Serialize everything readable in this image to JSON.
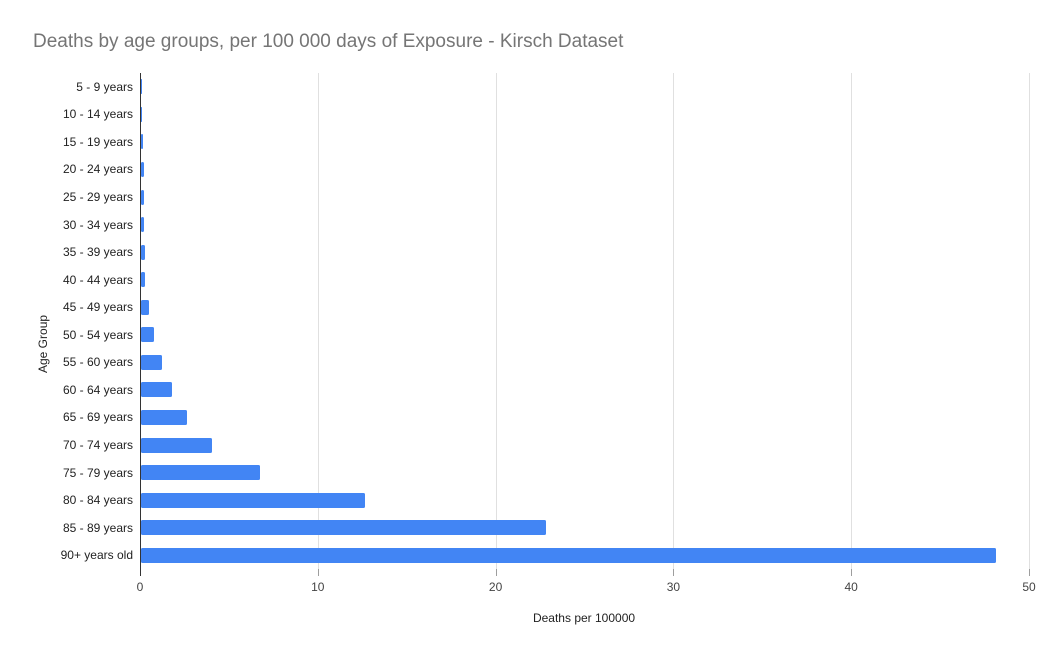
{
  "title": "Deaths by age groups, per 100 000 days of Exposure - Kirsch Dataset",
  "chart_data": {
    "type": "bar",
    "orientation": "horizontal",
    "title": "Deaths by age groups, per 100 000 days of Exposure - Kirsch Dataset",
    "categories": [
      "5 - 9 years",
      "10 - 14 years",
      "15 - 19 years",
      "20 - 24 years",
      "25 - 29 years",
      "30 - 34 years",
      "35 - 39 years",
      "40 - 44 years",
      "45 - 49 years",
      "50 - 54 years",
      "55 - 60 years",
      "60 - 64 years",
      "65 - 69 years",
      "70 - 74 years",
      "75 - 79 years",
      "80 - 84 years",
      "85 - 89 years",
      "90+ years old"
    ],
    "values": [
      0.02,
      0.04,
      0.1,
      0.17,
      0.17,
      0.15,
      0.2,
      0.25,
      0.45,
      0.75,
      1.2,
      1.75,
      2.6,
      4.0,
      6.7,
      12.6,
      22.8,
      48.1
    ],
    "xlabel": "Deaths per 100000",
    "ylabel": "Age Group",
    "xlim": [
      0,
      50
    ],
    "xticks": [
      0,
      10,
      20,
      30,
      40,
      50
    ],
    "grid": true,
    "legend": "none"
  },
  "colors": {
    "background": "#ffffff",
    "title_text": "#757575",
    "bar_fill": "#4285F4",
    "gridline": "#e0e0e0",
    "axis_line": "#333333",
    "tick_mark": "#9e9e9e",
    "category_label": "#222222",
    "x_tick_label": "#444444",
    "axis_title": "#222222"
  }
}
